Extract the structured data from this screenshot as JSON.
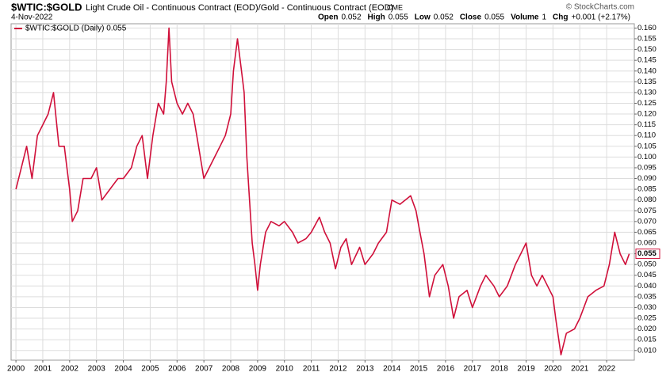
{
  "chart_data": {
    "type": "line",
    "symbol": "$WTIC:$GOLD",
    "title": "Light Crude Oil - Continuous Contract (EOD)/Gold - Continuous Contract (EOD)",
    "exchange": "CME",
    "date": "4-Nov-2022",
    "watermark": "© StockCharts.com",
    "quote": [
      {
        "label": "Open",
        "value": "0.052"
      },
      {
        "label": "High",
        "value": "0.055"
      },
      {
        "label": "Low",
        "value": "0.052"
      },
      {
        "label": "Close",
        "value": "0.055"
      },
      {
        "label": "Volume",
        "value": "1"
      },
      {
        "label": "Chg",
        "value": "+0.001 (+2.17%)"
      }
    ],
    "legend_position": "top-left",
    "grid": true,
    "x": [
      2000.0,
      2000.2,
      2000.4,
      2000.6,
      2000.8,
      2001.0,
      2001.2,
      2001.4,
      2001.6,
      2001.8,
      2001.9,
      2002.0,
      2002.1,
      2002.3,
      2002.5,
      2002.8,
      2003.0,
      2003.2,
      2003.5,
      2003.8,
      2004.0,
      2004.3,
      2004.5,
      2004.7,
      2004.9,
      2005.1,
      2005.3,
      2005.5,
      2005.6,
      2005.7,
      2005.8,
      2006.0,
      2006.2,
      2006.4,
      2006.6,
      2006.8,
      2007.0,
      2007.2,
      2007.4,
      2007.6,
      2007.8,
      2008.0,
      2008.1,
      2008.25,
      2008.4,
      2008.5,
      2008.6,
      2008.7,
      2008.8,
      2008.9,
      2009.0,
      2009.1,
      2009.3,
      2009.5,
      2009.8,
      2010.0,
      2010.3,
      2010.5,
      2010.8,
      2011.0,
      2011.3,
      2011.5,
      2011.7,
      2011.9,
      2012.1,
      2012.3,
      2012.5,
      2012.8,
      2013.0,
      2013.3,
      2013.5,
      2013.8,
      2014.0,
      2014.3,
      2014.5,
      2014.7,
      2014.9,
      2015.0,
      2015.2,
      2015.4,
      2015.6,
      2015.9,
      2016.1,
      2016.3,
      2016.5,
      2016.8,
      2017.0,
      2017.3,
      2017.5,
      2017.8,
      2018.0,
      2018.3,
      2018.6,
      2018.8,
      2019.0,
      2019.2,
      2019.4,
      2019.6,
      2019.8,
      2020.0,
      2020.1,
      2020.3,
      2020.5,
      2020.8,
      2021.0,
      2021.3,
      2021.6,
      2021.9,
      2022.1,
      2022.3,
      2022.5,
      2022.7,
      2022.84
    ],
    "series": [
      {
        "name": "$WTIC:$GOLD (Daily) 0.055",
        "color": "#d0103a",
        "values": [
          0.085,
          0.095,
          0.105,
          0.09,
          0.11,
          0.115,
          0.12,
          0.13,
          0.105,
          0.105,
          0.095,
          0.085,
          0.07,
          0.075,
          0.09,
          0.09,
          0.095,
          0.08,
          0.085,
          0.09,
          0.09,
          0.095,
          0.105,
          0.11,
          0.09,
          0.11,
          0.125,
          0.12,
          0.135,
          0.16,
          0.135,
          0.125,
          0.12,
          0.125,
          0.12,
          0.105,
          0.09,
          0.095,
          0.1,
          0.105,
          0.11,
          0.12,
          0.14,
          0.155,
          0.14,
          0.13,
          0.1,
          0.08,
          0.06,
          0.05,
          0.038,
          0.05,
          0.065,
          0.07,
          0.068,
          0.07,
          0.065,
          0.06,
          0.062,
          0.065,
          0.072,
          0.065,
          0.06,
          0.048,
          0.058,
          0.062,
          0.05,
          0.058,
          0.05,
          0.055,
          0.06,
          0.065,
          0.08,
          0.078,
          0.08,
          0.082,
          0.075,
          0.068,
          0.055,
          0.035,
          0.045,
          0.05,
          0.04,
          0.025,
          0.035,
          0.038,
          0.03,
          0.04,
          0.045,
          0.04,
          0.035,
          0.04,
          0.05,
          0.055,
          0.06,
          0.045,
          0.04,
          0.045,
          0.04,
          0.035,
          0.025,
          0.008,
          0.018,
          0.02,
          0.025,
          0.035,
          0.038,
          0.04,
          0.05,
          0.065,
          0.055,
          0.05,
          0.055
        ]
      }
    ],
    "last_value_label": "0.055",
    "xlim": [
      1999.82,
      2023.03
    ],
    "xticks": [
      2000,
      2001,
      2002,
      2003,
      2004,
      2005,
      2006,
      2007,
      2008,
      2009,
      2010,
      2011,
      2012,
      2013,
      2014,
      2015,
      2016,
      2017,
      2018,
      2019,
      2020,
      2021,
      2022
    ],
    "ylim": [
      0.0055,
      0.162
    ],
    "yticks": [
      {
        "value": 0.01,
        "label": "0.010"
      },
      {
        "value": 0.015,
        "label": "0.015"
      },
      {
        "value": 0.02,
        "label": "0.020"
      },
      {
        "value": 0.025,
        "label": "0.025"
      },
      {
        "value": 0.03,
        "label": "0.030"
      },
      {
        "value": 0.035,
        "label": "0.035"
      },
      {
        "value": 0.04,
        "label": "0.040"
      },
      {
        "value": 0.045,
        "label": "0.045"
      },
      {
        "value": 0.05,
        "label": "0.050"
      },
      {
        "value": 0.055,
        "label": "0.055"
      },
      {
        "value": 0.06,
        "label": "0.060"
      },
      {
        "value": 0.065,
        "label": "0.065"
      },
      {
        "value": 0.07,
        "label": "0.070"
      },
      {
        "value": 0.075,
        "label": "0.075"
      },
      {
        "value": 0.08,
        "label": "0.080"
      },
      {
        "value": 0.085,
        "label": "0.085"
      },
      {
        "value": 0.09,
        "label": "0.090"
      },
      {
        "value": 0.095,
        "label": "0.095"
      },
      {
        "value": 0.1,
        "label": "0.100"
      },
      {
        "value": 0.105,
        "label": "0.105"
      },
      {
        "value": 0.11,
        "label": "0.110"
      },
      {
        "value": 0.115,
        "label": "0.115"
      },
      {
        "value": 0.12,
        "label": "0.120"
      },
      {
        "value": 0.125,
        "label": "0.125"
      },
      {
        "value": 0.13,
        "label": "0.130"
      },
      {
        "value": 0.135,
        "label": "0.135"
      },
      {
        "value": 0.14,
        "label": "0.140"
      },
      {
        "value": 0.145,
        "label": "0.145"
      },
      {
        "value": 0.15,
        "label": "0.150"
      },
      {
        "value": 0.155,
        "label": "0.155"
      },
      {
        "value": 0.16,
        "label": "0.160"
      }
    ]
  }
}
